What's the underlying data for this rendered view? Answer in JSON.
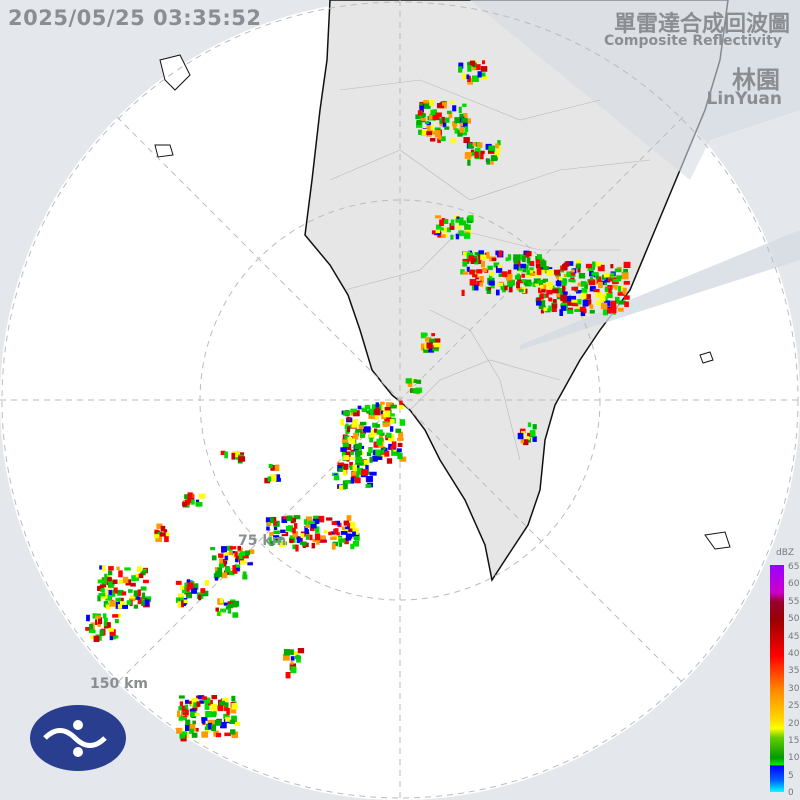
{
  "header": {
    "timestamp": "2025/05/25 03:35:52",
    "title_zh": "單雷達合成回波圖",
    "title_en": "Composite Reflectivity",
    "station_zh": "林園",
    "station_en": "LinYuan"
  },
  "range_rings": {
    "inner_label": "75 km",
    "outer_label": "150 km"
  },
  "legend": {
    "unit": "dBZ",
    "ticks": [
      "65",
      "60",
      "55",
      "50",
      "45",
      "40",
      "35",
      "30",
      "25",
      "20",
      "15",
      "10",
      "5",
      "0"
    ]
  },
  "colors": {
    "land": "#e6e6e6",
    "coast": "#111111",
    "outside_range": "#e4e8ec",
    "blocked_sector": "#dde2e8"
  },
  "logo": {
    "name": "cwa-logo-icon"
  }
}
